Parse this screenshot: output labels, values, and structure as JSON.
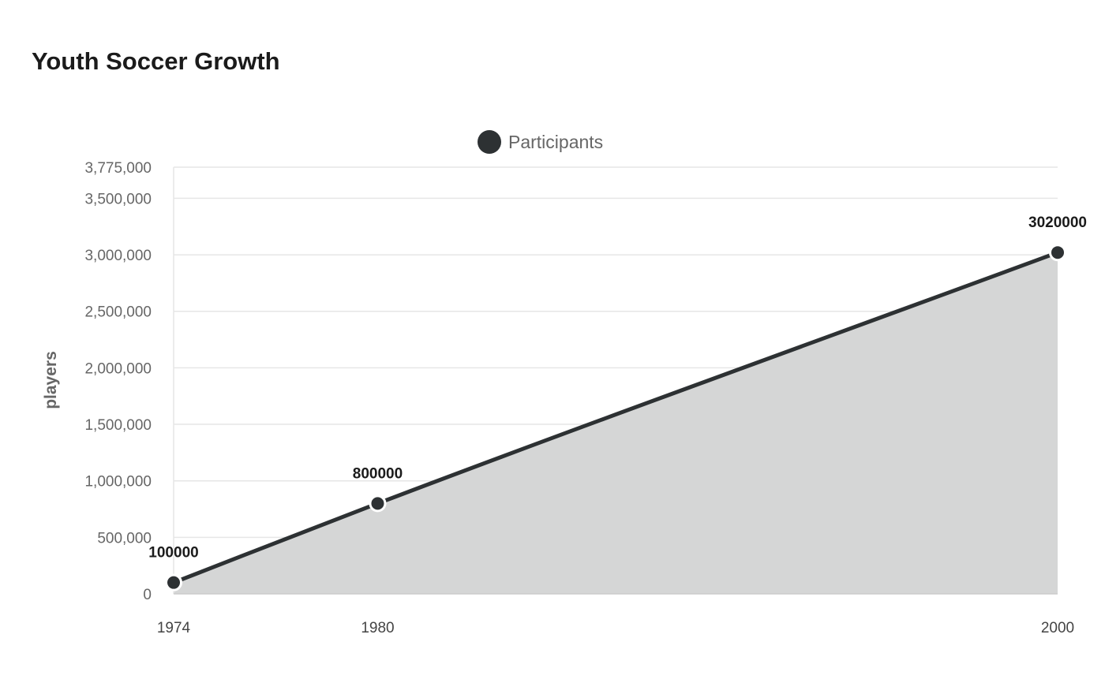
{
  "chart_data": {
    "type": "area",
    "title": "Youth Soccer Growth",
    "xlabel": "",
    "ylabel": "players",
    "categories": [
      "1974",
      "1980",
      "2000"
    ],
    "series": [
      {
        "name": "Participants",
        "values": [
          100000,
          800000,
          3020000
        ],
        "data_labels": [
          "100000",
          "800000",
          "3020000"
        ]
      }
    ],
    "ylim": [
      0,
      3775000
    ],
    "yticks": [
      0,
      500000,
      1000000,
      1500000,
      2000000,
      2500000,
      3000000,
      3500000,
      3775000
    ],
    "ytick_labels": [
      "0",
      "500,000",
      "1,000,000",
      "1,500,000",
      "2,000,000",
      "2,500,000",
      "3,000,000",
      "3,500,000",
      "3,775,000"
    ],
    "grid": true,
    "legend_position": "top-center",
    "colors": {
      "line": "#2d3133",
      "fill": "#d5d6d6",
      "marker_stroke": "#ffffff",
      "grid": "#e6e6e6"
    }
  }
}
